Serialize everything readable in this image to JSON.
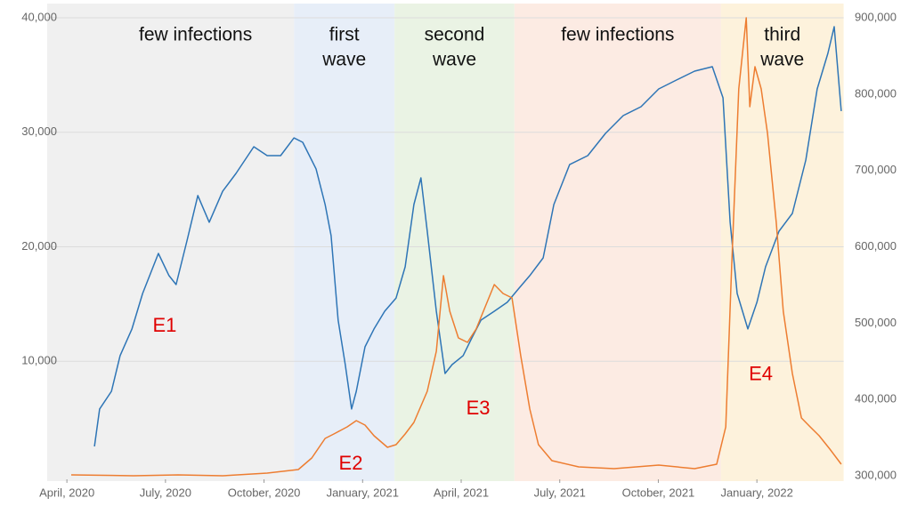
{
  "chart_data": {
    "type": "line",
    "xlim": [
      2020.2,
      2022.22
    ],
    "xticks": [
      {
        "value": 2020.25,
        "label": "April, 2020"
      },
      {
        "value": 2020.5,
        "label": "July, 2020"
      },
      {
        "value": 2020.75,
        "label": "October, 2020"
      },
      {
        "value": 2021.0,
        "label": "January, 2021"
      },
      {
        "value": 2021.25,
        "label": "April, 2021"
      },
      {
        "value": 2021.5,
        "label": "July, 2021"
      },
      {
        "value": 2021.75,
        "label": "October, 2021"
      },
      {
        "value": 2022.0,
        "label": "January, 2022"
      }
    ],
    "ylim": [
      0,
      40000
    ],
    "yticks": [
      {
        "value": 10000,
        "label": "10,000"
      },
      {
        "value": 20000,
        "label": "20,000"
      },
      {
        "value": 30000,
        "label": "30,000"
      },
      {
        "value": 40000,
        "label": "40,000"
      }
    ],
    "y2lim": [
      300000,
      900000
    ],
    "y2ticks": [
      {
        "value": 300000,
        "label": "300,000"
      },
      {
        "value": 400000,
        "label": "400,000"
      },
      {
        "value": 500000,
        "label": "500,000"
      },
      {
        "value": 600000,
        "label": "600,000"
      },
      {
        "value": 700000,
        "label": "700,000"
      },
      {
        "value": 800000,
        "label": "800,000"
      },
      {
        "value": 900000,
        "label": "900,000"
      }
    ],
    "grid": true,
    "regions": [
      {
        "lines": [
          "few infections"
        ],
        "start": 2020.2,
        "end": 2020.826,
        "color": "#f0f0f0"
      },
      {
        "lines": [
          "first",
          "wave"
        ],
        "start": 2020.826,
        "end": 2021.081,
        "color": "#e7eef8"
      },
      {
        "lines": [
          "second",
          "wave"
        ],
        "start": 2021.081,
        "end": 2021.385,
        "color": "#eaf3e4"
      },
      {
        "lines": [
          "few infections"
        ],
        "start": 2021.385,
        "end": 2021.909,
        "color": "#fcebe3"
      },
      {
        "lines": [
          "third",
          "wave"
        ],
        "start": 2021.909,
        "end": 2022.22,
        "color": "#fdf2dc"
      }
    ],
    "annotations": [
      {
        "text": "E1",
        "x": 2020.498,
        "y": 13050,
        "color": "#e00000"
      },
      {
        "text": "E2",
        "x": 2020.97,
        "y": 1000,
        "color": "#e00000"
      },
      {
        "text": "E3",
        "x": 2021.293,
        "y": 5800,
        "color": "#e00000"
      },
      {
        "text": "E4",
        "x": 2022.01,
        "y": 8800,
        "color": "#e00000"
      }
    ],
    "series": [
      {
        "color": "#2e75b6",
        "x": [
          2020.32,
          2020.333,
          2020.363,
          2020.385,
          2020.415,
          2020.442,
          2020.482,
          2020.509,
          2020.527,
          2020.555,
          2020.582,
          2020.611,
          2020.645,
          2020.679,
          2020.724,
          2020.758,
          2020.792,
          2020.826,
          2020.848,
          2020.882,
          2020.905,
          2020.92,
          2020.938,
          2020.956,
          2020.972,
          2020.984,
          2021.006,
          2021.029,
          2021.056,
          2021.085,
          2021.108,
          2021.13,
          2021.148,
          2021.164,
          2021.187,
          2021.209,
          2021.227,
          2021.255,
          2021.277,
          2021.3,
          2021.334,
          2021.367,
          2021.395,
          2021.424,
          2021.458,
          2021.485,
          2021.525,
          2021.571,
          2021.616,
          2021.661,
          2021.706,
          2021.751,
          2021.796,
          2021.842,
          2021.887,
          2021.914,
          2021.932,
          2021.95,
          2021.977,
          2022.0,
          2022.022,
          2022.056,
          2022.09,
          2022.124,
          2022.153,
          2022.18,
          2022.196,
          2022.214
        ],
        "values": [
          2560,
          5830,
          7380,
          10490,
          12820,
          15920,
          19420,
          17480,
          16700,
          20580,
          24470,
          22140,
          24850,
          26410,
          28740,
          27960,
          27960,
          29510,
          29130,
          26800,
          23690,
          20970,
          13590,
          9710,
          5830,
          7380,
          11260,
          12820,
          14370,
          15530,
          18250,
          23690,
          26020,
          21360,
          14370,
          8930,
          9710,
          10490,
          12040,
          13590,
          14370,
          15150,
          16310,
          17480,
          19030,
          23690,
          27180,
          27960,
          29900,
          31460,
          32230,
          33790,
          34560,
          35340,
          35730,
          33010,
          22140,
          15920,
          12820,
          15150,
          18250,
          21360,
          22910,
          27570,
          33790,
          36890,
          39220,
          31850
        ]
      },
      {
        "color": "#ed7d31",
        "axis": "y2",
        "x": [
          2020.261,
          2020.419,
          2020.532,
          2020.645,
          2020.758,
          2020.837,
          2020.871,
          2020.905,
          2020.927,
          2020.961,
          2020.984,
          2021.006,
          2021.029,
          2021.063,
          2021.085,
          2021.108,
          2021.13,
          2021.164,
          2021.187,
          2021.205,
          2021.221,
          2021.243,
          2021.266,
          2021.288,
          2021.311,
          2021.334,
          2021.356,
          2021.379,
          2021.401,
          2021.424,
          2021.446,
          2021.48,
          2021.548,
          2021.638,
          2021.751,
          2021.842,
          2021.898,
          2021.921,
          2021.936,
          2021.954,
          2021.973,
          2021.982,
          2021.995,
          2022.011,
          2022.027,
          2022.049,
          2022.067,
          2022.09,
          2022.113,
          2022.135,
          2022.158,
          2022.185,
          2022.214
        ],
        "values": [
          301170,
          300000,
          301170,
          300000,
          303500,
          308160,
          323300,
          348930,
          354760,
          364080,
          372230,
          366410,
          352430,
          337280,
          340780,
          354760,
          369900,
          410680,
          463110,
          562140,
          515530,
          480580,
          474760,
          492230,
          521360,
          550490,
          538840,
          533010,
          457280,
          387380,
          340780,
          319810,
          311650,
          309320,
          313980,
          309320,
          315150,
          364080,
          573790,
          806800,
          900000,
          783500,
          835920,
          806800,
          748540,
          632040,
          515530,
          433980,
          375730,
          364080,
          352430,
          334950,
          315150
        ]
      }
    ]
  }
}
